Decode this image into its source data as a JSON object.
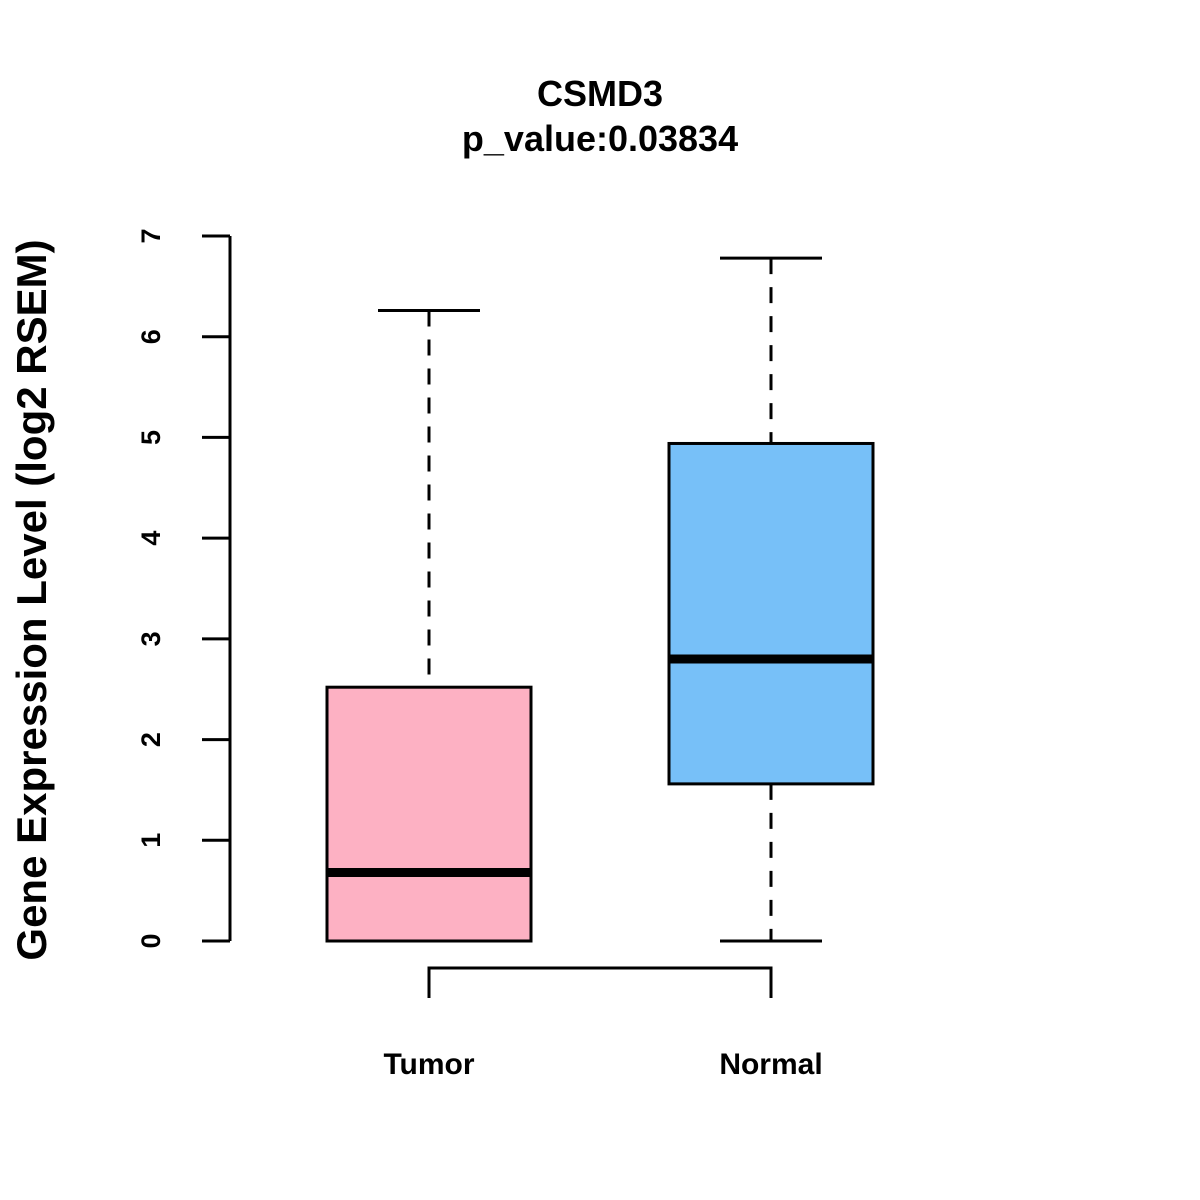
{
  "chart_data": {
    "type": "box",
    "title": "CSMD3",
    "subtitle": "p_value:0.03834",
    "ylabel": "Gene Expression Level (log2 RSEM)",
    "xlabel": "",
    "ylim": [
      0,
      7
    ],
    "yticks": [
      "0",
      "1",
      "2",
      "3",
      "4",
      "5",
      "6",
      "7"
    ],
    "categories": [
      "Tumor",
      "Normal"
    ],
    "boxes": [
      {
        "name": "Tumor",
        "min": 0,
        "q1": 0,
        "median": 0.68,
        "q3": 2.52,
        "max": 6.26,
        "color": "#FDB1C3"
      },
      {
        "name": "Normal",
        "min": 0,
        "q1": 1.56,
        "median": 2.8,
        "q3": 4.94,
        "max": 6.78,
        "color": "#77C0F8"
      }
    ],
    "comparison_bracket": [
      "Tumor",
      "Normal"
    ]
  }
}
